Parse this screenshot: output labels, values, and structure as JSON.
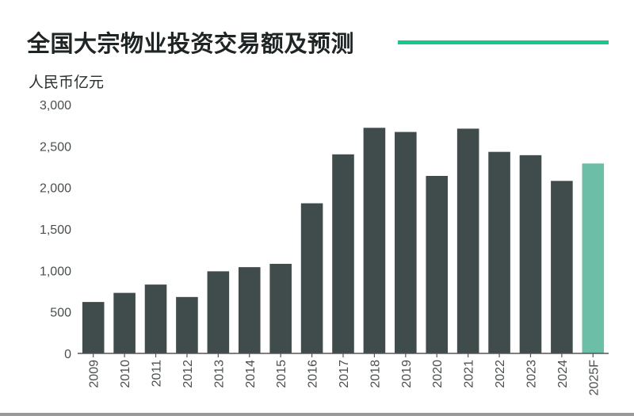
{
  "title": "全国大宗物业投资交易额及预测",
  "unit_label": "人民币亿元",
  "colors": {
    "bar": "#404c4b",
    "forecast_bar": "#6cbfa6",
    "accent_rule": "#14c98a",
    "axis": "#555555"
  },
  "chart_data": {
    "type": "bar",
    "title": "全国大宗物业投资交易额及预测",
    "ylabel": "人民币亿元",
    "xlabel": "",
    "ylim": [
      0,
      3000
    ],
    "y_ticks": [
      0,
      500,
      1000,
      1500,
      2000,
      2500,
      3000
    ],
    "y_tick_labels": [
      "0",
      "500",
      "1,000",
      "1,500",
      "2,000",
      "2,500",
      "3,000"
    ],
    "categories": [
      "2009",
      "2010",
      "2011",
      "2012",
      "2013",
      "2014",
      "2015",
      "2016",
      "2017",
      "2018",
      "2019",
      "2020",
      "2021",
      "2022",
      "2023",
      "2024",
      "2025F"
    ],
    "values": [
      620,
      730,
      830,
      680,
      990,
      1040,
      1080,
      1810,
      2400,
      2720,
      2670,
      2140,
      2710,
      2430,
      2390,
      2080,
      2290
    ],
    "forecast_categories": [
      "2025F"
    ],
    "grid": false,
    "legend": "none"
  }
}
